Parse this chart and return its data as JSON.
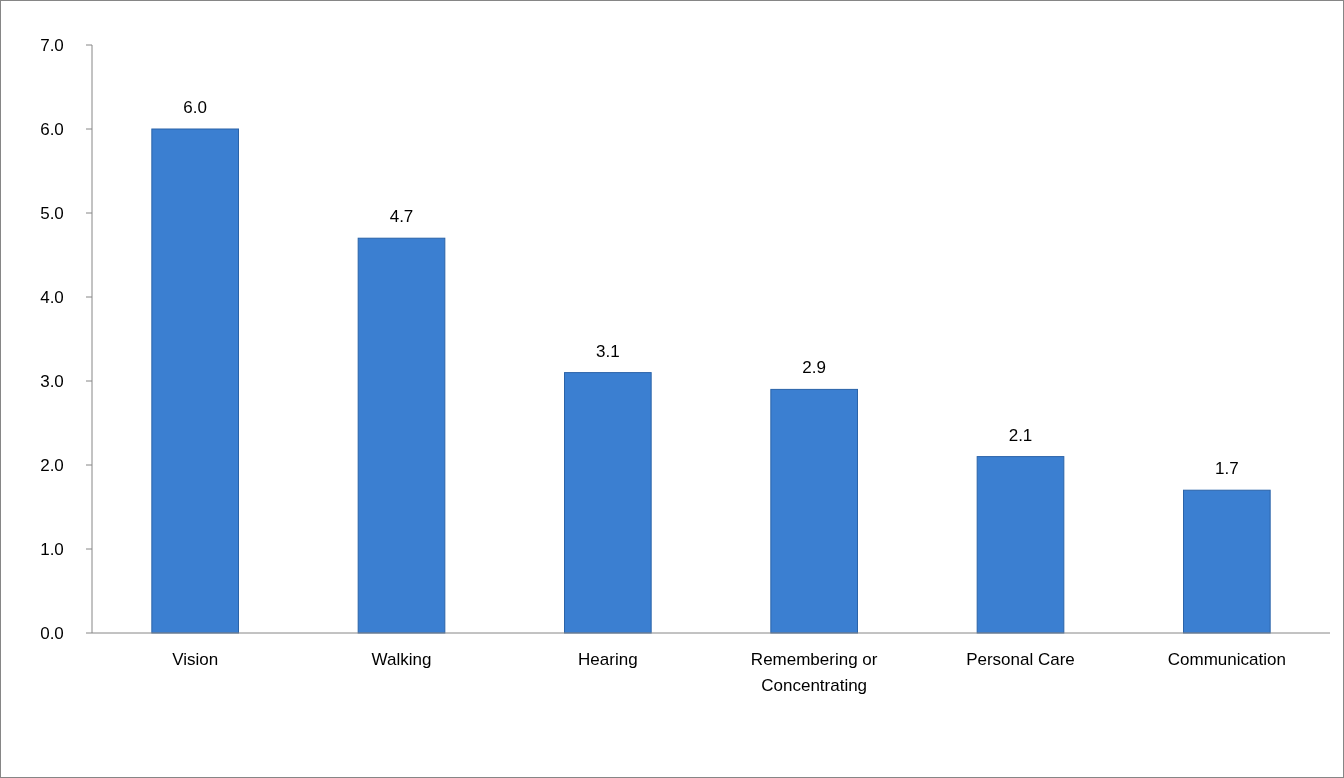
{
  "chart_data": {
    "type": "bar",
    "categories": [
      "Vision",
      "Walking",
      "Hearing",
      "Remembering or Concentrating",
      "Personal Care",
      "Communication"
    ],
    "values": [
      6.0,
      4.7,
      3.1,
      2.9,
      2.1,
      1.7
    ],
    "value_labels": [
      "6.0",
      "4.7",
      "3.1",
      "2.9",
      "2.1",
      "1.7"
    ],
    "color": "#3b7fd1",
    "ylim": [
      0,
      7
    ],
    "yticks": [
      {
        "value": 0,
        "label": "0.0"
      },
      {
        "value": 1,
        "label": "1.0"
      },
      {
        "value": 2,
        "label": "2.0"
      },
      {
        "value": 3,
        "label": "3.0"
      },
      {
        "value": 4,
        "label": "4.0"
      },
      {
        "value": 5,
        "label": "5.0"
      },
      {
        "value": 6,
        "label": "6.0"
      },
      {
        "value": 7,
        "label": "7.0"
      }
    ],
    "grid": false
  }
}
